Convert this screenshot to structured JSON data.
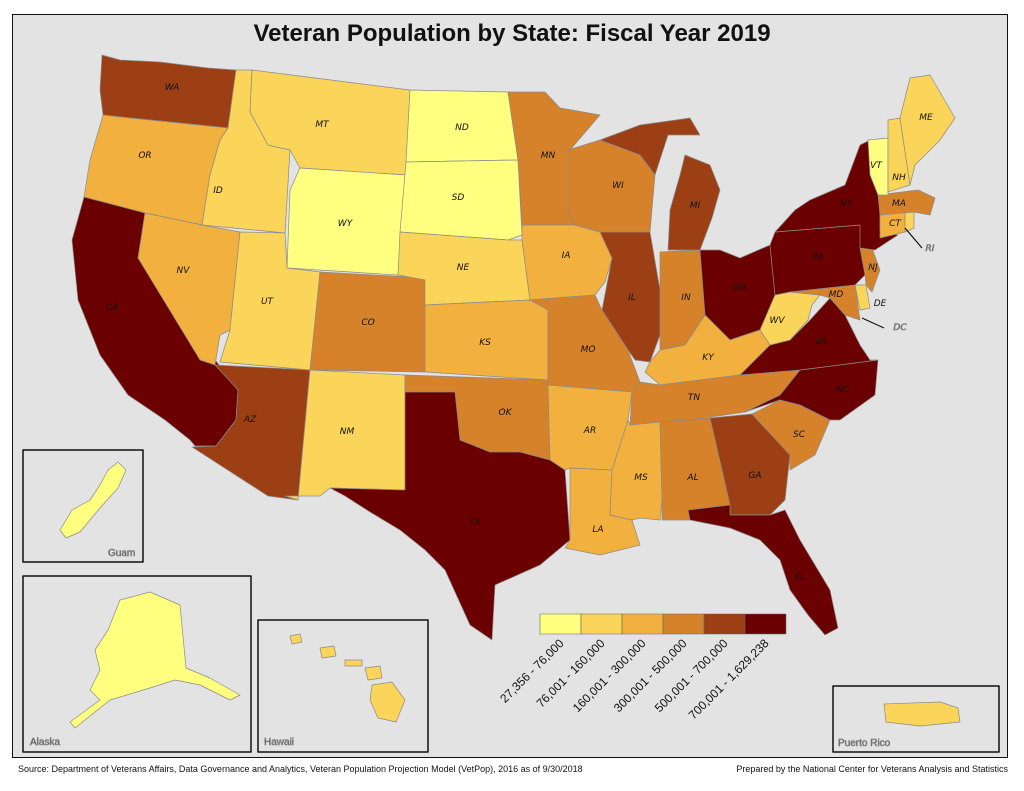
{
  "title": "Veteran Population by State: Fiscal Year 2019",
  "source": "Source: Department of Veterans Affairs, Data Governance and Analytics, Veteran Population Projection Model (VetPop), 2016 as of 9/30/2018",
  "credit": "Prepared by the National Center for Veterans Analysis and Statistics",
  "legend": {
    "classes": [
      {
        "label": "27,356 - 76,000",
        "color": "#ffff80"
      },
      {
        "label": "76,001 - 160,000",
        "color": "#fad55a"
      },
      {
        "label": "160,001 - 300,000",
        "color": "#f2b03e"
      },
      {
        "label": "300,001 - 500,000",
        "color": "#d6822b"
      },
      {
        "label": "500,001 - 700,000",
        "color": "#9c3f14"
      },
      {
        "label": "700,001 - 1,629,238",
        "color": "#6b0000"
      }
    ]
  },
  "insets": {
    "guam": "Guam",
    "alaska": "Alaska",
    "hawaii": "Hawaii",
    "puerto_rico": "Puerto Rico"
  },
  "states": {
    "WA": {
      "label": "WA",
      "class": 4
    },
    "OR": {
      "label": "OR",
      "class": 2
    },
    "CA": {
      "label": "CA",
      "class": 5
    },
    "ID": {
      "label": "ID",
      "class": 1
    },
    "NV": {
      "label": "NV",
      "class": 2
    },
    "MT": {
      "label": "MT",
      "class": 1
    },
    "WY": {
      "label": "WY",
      "class": 0
    },
    "UT": {
      "label": "UT",
      "class": 1
    },
    "AZ": {
      "label": "AZ",
      "class": 4
    },
    "CO": {
      "label": "CO",
      "class": 3
    },
    "NM": {
      "label": "NM",
      "class": 1
    },
    "ND": {
      "label": "ND",
      "class": 0
    },
    "SD": {
      "label": "SD",
      "class": 0
    },
    "NE": {
      "label": "NE",
      "class": 1
    },
    "KS": {
      "label": "KS",
      "class": 2
    },
    "OK": {
      "label": "OK",
      "class": 3
    },
    "TX": {
      "label": "TX",
      "class": 5
    },
    "MN": {
      "label": "MN",
      "class": 3
    },
    "IA": {
      "label": "IA",
      "class": 2
    },
    "MO": {
      "label": "MO",
      "class": 3
    },
    "AR": {
      "label": "AR",
      "class": 2
    },
    "LA": {
      "label": "LA",
      "class": 2
    },
    "WI": {
      "label": "WI",
      "class": 3
    },
    "IL": {
      "label": "IL",
      "class": 4
    },
    "MI": {
      "label": "MI",
      "class": 4
    },
    "IN": {
      "label": "IN",
      "class": 3
    },
    "OH": {
      "label": "OH",
      "class": 5
    },
    "KY": {
      "label": "KY",
      "class": 2
    },
    "TN": {
      "label": "TN",
      "class": 3
    },
    "MS": {
      "label": "MS",
      "class": 2
    },
    "AL": {
      "label": "AL",
      "class": 3
    },
    "GA": {
      "label": "GA",
      "class": 4
    },
    "FL": {
      "label": "FL",
      "class": 5
    },
    "SC": {
      "label": "SC",
      "class": 3
    },
    "NC": {
      "label": "NC",
      "class": 5
    },
    "VA": {
      "label": "VA",
      "class": 5
    },
    "WV": {
      "label": "WV",
      "class": 1
    },
    "PA": {
      "label": "PA",
      "class": 5
    },
    "NY": {
      "label": "NY",
      "class": 5
    },
    "NJ": {
      "label": "NJ",
      "class": 3
    },
    "DE": {
      "label": "DE",
      "class": 1
    },
    "MD": {
      "label": "MD",
      "class": 3
    },
    "DC": {
      "label": "DC",
      "class": 0
    },
    "CT": {
      "label": "CT",
      "class": 2
    },
    "RI": {
      "label": "RI",
      "class": 1
    },
    "MA": {
      "label": "MA",
      "class": 3
    },
    "VT": {
      "label": "VT",
      "class": 0
    },
    "NH": {
      "label": "NH",
      "class": 1
    },
    "ME": {
      "label": "ME",
      "class": 1
    },
    "AK": {
      "class": 0
    },
    "HI": {
      "class": 1
    },
    "GU": {
      "class": 0
    },
    "PR": {
      "class": 1
    }
  }
}
